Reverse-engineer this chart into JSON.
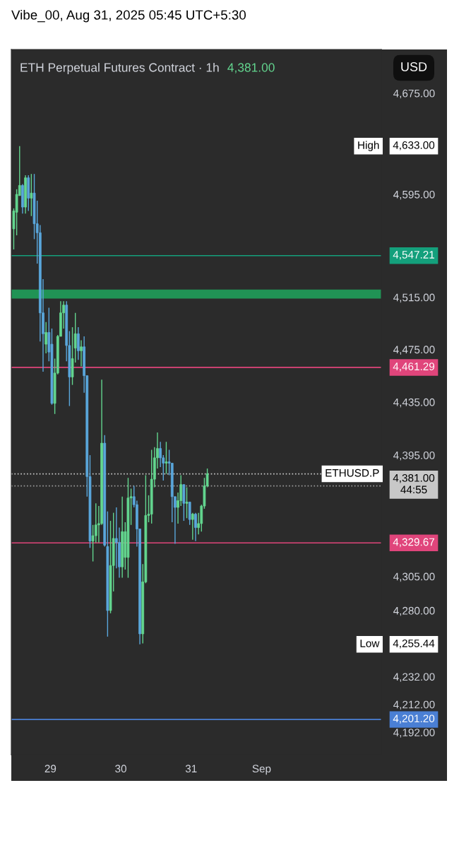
{
  "chart_data": {
    "type": "candlestick",
    "title": "ETH Perpetual Futures Contract · 1h",
    "subtitle": "4,381.00",
    "annotations": [
      "Vibe_00, Aug 31, 2025 05:45 UTC+5:30",
      "USD",
      "High",
      "4,633.00",
      "Low",
      "4,255.44",
      "ETHUSD.P"
    ],
    "x": [
      "2025-08-28T11:30",
      "2025-08-28T12:30",
      "2025-08-28T13:30",
      "2025-08-28T14:30",
      "2025-08-28T15:30",
      "2025-08-28T16:30",
      "2025-08-28T17:30",
      "2025-08-28T18:30",
      "2025-08-28T19:30",
      "2025-08-28T20:30",
      "2025-08-28T21:30",
      "2025-08-28T22:30",
      "2025-08-28T23:30",
      "2025-08-29T00:30",
      "2025-08-29T01:30",
      "2025-08-29T02:30",
      "2025-08-29T03:30",
      "2025-08-29T04:30",
      "2025-08-29T05:30",
      "2025-08-29T06:30",
      "2025-08-29T07:30",
      "2025-08-29T08:30",
      "2025-08-29T09:30",
      "2025-08-29T10:30",
      "2025-08-29T11:30",
      "2025-08-29T12:30",
      "2025-08-29T13:30",
      "2025-08-29T14:30",
      "2025-08-29T15:30",
      "2025-08-29T16:30",
      "2025-08-29T17:30",
      "2025-08-29T18:30",
      "2025-08-29T19:30",
      "2025-08-29T20:30",
      "2025-08-29T21:30",
      "2025-08-29T22:30",
      "2025-08-29T23:30",
      "2025-08-30T00:30",
      "2025-08-30T01:30",
      "2025-08-30T02:30",
      "2025-08-30T03:30",
      "2025-08-30T04:30",
      "2025-08-30T05:30",
      "2025-08-30T06:30",
      "2025-08-30T07:30",
      "2025-08-30T08:30",
      "2025-08-30T09:30",
      "2025-08-30T10:30",
      "2025-08-30T11:30",
      "2025-08-30T12:30",
      "2025-08-30T13:30",
      "2025-08-30T14:30",
      "2025-08-30T15:30",
      "2025-08-30T16:30",
      "2025-08-30T17:30",
      "2025-08-30T18:30",
      "2025-08-30T19:30",
      "2025-08-30T20:30",
      "2025-08-30T21:30",
      "2025-08-30T22:30",
      "2025-08-30T23:30",
      "2025-08-31T00:30",
      "2025-08-31T01:30",
      "2025-08-31T02:30",
      "2025-08-31T03:30",
      "2025-08-31T04:30",
      "2025-08-31T05:30"
    ],
    "ohlc": [
      [
        4568,
        4584,
        4552,
        4582
      ],
      [
        4581,
        4599,
        4563,
        4595
      ],
      [
        4594,
        4633,
        4594,
        4602
      ],
      [
        4602,
        4603,
        4580,
        4585
      ],
      [
        4585,
        4610,
        4580,
        4608
      ],
      [
        4608,
        4610,
        4582,
        4592
      ],
      [
        4592,
        4611,
        4578,
        4596
      ],
      [
        4596,
        4611,
        4560,
        4572
      ],
      [
        4572,
        4590,
        4541,
        4565
      ],
      [
        4565,
        4571,
        4481,
        4503
      ],
      [
        4503,
        4529,
        4458,
        4487
      ],
      [
        4479,
        4496,
        4472,
        4488
      ],
      [
        4488,
        4507,
        4466,
        4473
      ],
      [
        4479,
        4491,
        4433,
        4434
      ],
      [
        4434,
        4468,
        4426,
        4457
      ],
      [
        4457,
        4486,
        4456,
        4485
      ],
      [
        4485,
        4512,
        4485,
        4503
      ],
      [
        4503,
        4512,
        4491,
        4509
      ],
      [
        4509,
        4512,
        4466,
        4478
      ],
      [
        4478,
        4489,
        4432,
        4454
      ],
      [
        4454,
        4492,
        4448,
        4468
      ],
      [
        4476,
        4503,
        4465,
        4487
      ],
      [
        4487,
        4492,
        4467,
        4474
      ],
      [
        4474,
        4482,
        4462,
        4477
      ],
      [
        4477,
        4485,
        4442,
        4455
      ],
      [
        4455,
        4455,
        4364,
        4379
      ],
      [
        4379,
        4395,
        4326,
        4331
      ],
      [
        4331,
        4343,
        4316,
        4335
      ],
      [
        4335,
        4359,
        4330,
        4343
      ],
      [
        4343,
        4357,
        4330,
        4344
      ],
      [
        4344,
        4452,
        4343,
        4404
      ],
      [
        4404,
        4410,
        4327,
        4328
      ],
      [
        4327,
        4353,
        4261,
        4280
      ],
      [
        4280,
        4346,
        4278,
        4313
      ],
      [
        4313,
        4352,
        4294,
        4333
      ],
      [
        4333,
        4356,
        4311,
        4330
      ],
      [
        4330,
        4341,
        4304,
        4312
      ],
      [
        4312,
        4364,
        4304,
        4338
      ],
      [
        4319,
        4345,
        4310,
        4338
      ],
      [
        4319,
        4378,
        4304,
        4363
      ],
      [
        4363,
        4370,
        4343,
        4364
      ],
      [
        4364,
        4372,
        4356,
        4358
      ],
      [
        4358,
        4361,
        4327,
        4340
      ],
      [
        4340,
        4340,
        4255.44,
        4263
      ],
      [
        4263,
        4314,
        4256,
        4301
      ],
      [
        4301,
        4380,
        4300,
        4350
      ],
      [
        4350,
        4365,
        4345,
        4351
      ],
      [
        4351,
        4399,
        4344,
        4377
      ],
      [
        4377,
        4401,
        4371,
        4393
      ],
      [
        4393,
        4412,
        4385,
        4400
      ],
      [
        4400,
        4405,
        4386,
        4393
      ],
      [
        4393,
        4395,
        4376,
        4389
      ],
      [
        4389,
        4405,
        4381,
        4390
      ],
      [
        4390,
        4399,
        4380,
        4389
      ],
      [
        4389,
        4389,
        4345,
        4364
      ],
      [
        4364,
        4364,
        4329,
        4356
      ],
      [
        4356,
        4367,
        4344,
        4361
      ],
      [
        4361,
        4380,
        4357,
        4373
      ],
      [
        4373,
        4373,
        4346,
        4359
      ],
      [
        4359,
        4371,
        4348,
        4360
      ],
      [
        4360,
        4360,
        4343,
        4347
      ],
      [
        4347,
        4352,
        4332,
        4351
      ],
      [
        4351,
        4352,
        4331,
        4341
      ],
      [
        4341,
        4352,
        4336,
        4344
      ],
      [
        4344,
        4358,
        4338,
        4357
      ],
      [
        4357,
        4378,
        4355,
        4372
      ],
      [
        4372,
        4385,
        4371,
        4381
      ]
    ],
    "colors": [
      "#63d68f",
      "#63d68f",
      "#63d68f",
      "#5aa7dc",
      "#63d68f",
      "#5aa7dc",
      "#63d68f",
      "#5aa7dc",
      "#5aa7dc",
      "#5aa7dc",
      "#5aa7dc",
      "#63d68f",
      "#5aa7dc",
      "#5aa7dc",
      "#63d68f",
      "#63d68f",
      "#63d68f",
      "#63d68f",
      "#5aa7dc",
      "#5aa7dc",
      "#63d68f",
      "#63d68f",
      "#5aa7dc",
      "#63d68f",
      "#5aa7dc",
      "#5aa7dc",
      "#5aa7dc",
      "#63d68f",
      "#63d68f",
      "#63d68f",
      "#63d68f",
      "#5aa7dc",
      "#5aa7dc",
      "#63d68f",
      "#63d68f",
      "#5aa7dc",
      "#5aa7dc",
      "#63d68f",
      "#63d68f",
      "#63d68f",
      "#63d68f",
      "#5aa7dc",
      "#5aa7dc",
      "#5aa7dc",
      "#63d68f",
      "#63d68f",
      "#63d68f",
      "#63d68f",
      "#63d68f",
      "#63d68f",
      "#5aa7dc",
      "#5aa7dc",
      "#63d68f",
      "#5aa7dc",
      "#5aa7dc",
      "#5aa7dc",
      "#63d68f",
      "#63d68f",
      "#5aa7dc",
      "#63d68f",
      "#5aa7dc",
      "#63d68f",
      "#5aa7dc",
      "#63d68f",
      "#63d68f",
      "#63d68f",
      "#63d68f"
    ],
    "log": true,
    "xlim": [
      "2025-08-28T10:40",
      "2025-09-02T16:50"
    ],
    "xticks": [
      {
        "value": "2025-08-29",
        "label": "29"
      },
      {
        "value": "2025-08-30",
        "label": "30"
      },
      {
        "value": "2025-08-31",
        "label": "31"
      },
      {
        "value": "2025-09-01",
        "label": "Sep"
      }
    ],
    "ylim": [
      4176,
      4710
    ],
    "yticks": [
      {
        "value": 4675,
        "label": "4,675.00"
      },
      {
        "value": 4595,
        "label": "4,595.00"
      },
      {
        "value": 4515,
        "label": "4,515.00"
      },
      {
        "value": 4475,
        "label": "4,475.00"
      },
      {
        "value": 4435,
        "label": "4,435.00"
      },
      {
        "value": 4395,
        "label": "4,395.00"
      },
      {
        "value": 4305,
        "label": "4,305.00"
      },
      {
        "value": 4280,
        "label": "4,280.00"
      },
      {
        "value": 4232,
        "label": "4,232.00"
      },
      {
        "value": 4212,
        "label": "4,212.00"
      },
      {
        "value": 4192,
        "label": "4,192.00"
      }
    ],
    "ref_lines": [
      {
        "axis": "y",
        "value": 4547.21,
        "label": "4,547.21",
        "color": "#14a07c"
      },
      {
        "axis": "y",
        "value": 4461.29,
        "label": "4,461.29",
        "color": "#e0457b"
      },
      {
        "axis": "y",
        "value": 4329.67,
        "label": "4,329.67",
        "color": "#e0457b"
      },
      {
        "axis": "y",
        "value": 4201.2,
        "label": "4,201.20",
        "color": "#4a7fd4"
      },
      {
        "axis": "y",
        "value": 4381,
        "label": "4,381.00\n44:55",
        "color": "#c8c8c8",
        "line_style": "dotted"
      },
      {
        "axis": "y",
        "value": 4372,
        "label": null,
        "color": "#9a9a9a",
        "line_style": "dotted"
      }
    ],
    "bands": [
      {
        "axis": "y",
        "from": 4514,
        "to": 4521,
        "label": null,
        "color": "#1f9e5a"
      }
    ],
    "grid": false,
    "legend": false
  }
}
